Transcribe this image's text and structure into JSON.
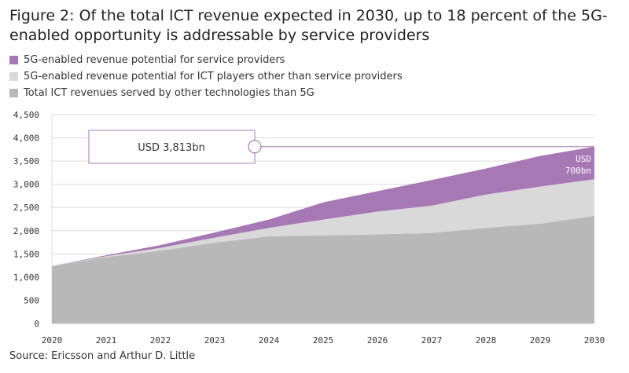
{
  "title": "Figure 2: Of the total ICT revenue expected in 2030, up to 18 percent of the 5G-enabled opportunity is addressable by service providers",
  "source": "Source: Ericsson and Arthur D. Little",
  "colors": {
    "service_providers": "#a678b4",
    "other_ict": "#d9d9d9",
    "other_tech": "#b8b8b8",
    "grid": "#dcdcdc",
    "callout_line": "#a678b4"
  },
  "chart_data": {
    "type": "area",
    "stacked": true,
    "x": [
      2020,
      2021,
      2022,
      2023,
      2024,
      2025,
      2026,
      2027,
      2028,
      2029,
      2030
    ],
    "x_tick_labels": [
      "2020",
      "2021",
      "2022",
      "2023",
      "2024",
      "2025",
      "2026",
      "2027",
      "2028",
      "2029",
      "2030"
    ],
    "y_tick_labels": [
      "0",
      "500",
      "1,000",
      "1,500",
      "2,000",
      "2,500",
      "3,000",
      "3,500",
      "4,000",
      "4,500"
    ],
    "ylim": [
      0,
      4500
    ],
    "grid": true,
    "legend_position": "top-left",
    "series": [
      {
        "name": "Total ICT revenues served by other technologies than 5G",
        "color": "#b8b8b8",
        "values": [
          1240,
          1430,
          1570,
          1740,
          1880,
          1900,
          1920,
          1950,
          2060,
          2150,
          2320
        ]
      },
      {
        "name": "5G-enabled revenue potential for ICT players other than service providers",
        "color": "#d9d9d9",
        "values": [
          0,
          20,
          60,
          110,
          180,
          340,
          490,
          590,
          720,
          800,
          790
        ]
      },
      {
        "name": "5G-enabled revenue potential for service providers",
        "color": "#a678b4",
        "values": [
          0,
          20,
          60,
          110,
          180,
          370,
          440,
          550,
          560,
          660,
          700
        ]
      }
    ],
    "annotations": {
      "total_callout": "USD 3,813bn",
      "sp_callout_line1": "USD",
      "sp_callout_line2": "700bn"
    }
  }
}
